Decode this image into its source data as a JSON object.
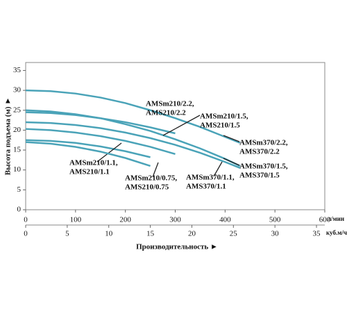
{
  "chart_data": {
    "type": "line",
    "y_label": "Высота подъема (м) ►",
    "x_label": "Производительность ►",
    "x_unit": "л/мин",
    "x2_unit": "куб.м/ч",
    "x": [
      0,
      50,
      100,
      150,
      200,
      250,
      300,
      350,
      400,
      430
    ],
    "xlim": [
      0,
      600
    ],
    "xticks": [
      0,
      100,
      200,
      300,
      400,
      500,
      600
    ],
    "x2lim": [
      0,
      36
    ],
    "x2ticks": [
      0,
      5,
      10,
      15,
      20,
      25,
      30,
      35
    ],
    "ylim": [
      0,
      37
    ],
    "yticks": [
      0,
      5,
      10,
      15,
      20,
      25,
      30,
      35
    ],
    "series": [
      {
        "label": [
          "AMSm370/2.2,",
          "AMS370/2.2"
        ],
        "color": "#4aa3b8",
        "values": [
          30,
          29.8,
          29.2,
          28.2,
          26.8,
          25,
          23,
          20.8,
          18.3,
          16.8
        ]
      },
      {
        "label": [
          "AMSm370/1.5,",
          "AMS370/1.5"
        ],
        "color": "#4aa3b8",
        "values": [
          25,
          24.7,
          24,
          23,
          21.5,
          19.8,
          17.7,
          15.4,
          12.8,
          11
        ]
      },
      {
        "label": [
          "AMSm370/1.1,",
          "AMS370/1.1"
        ],
        "color": "#4aa3b8",
        "values": [
          22,
          21.8,
          21.3,
          20.5,
          19.4,
          18,
          16.3,
          14.3,
          12,
          10.5
        ]
      },
      {
        "label": [
          "AMSm210/2.2,",
          "AMS210/2.2"
        ],
        "color": "#4aa3b8",
        "values": [
          24.5,
          24.3,
          23.8,
          23,
          22,
          20.7,
          19.2,
          null,
          null,
          null
        ]
      },
      {
        "label": [
          "AMSm210/1.5,",
          "AMS210/1.5"
        ],
        "color": "#4aa3b8",
        "values": [
          20.3,
          20,
          19.4,
          18.5,
          17.3,
          15.8,
          14,
          null,
          null,
          null
        ]
      },
      {
        "label": [
          "AMSm210/1.1,",
          "AMS210/1.1"
        ],
        "color": "#4aa3b8",
        "values": [
          17.5,
          17.3,
          16.8,
          15.9,
          14.7,
          13.2,
          null,
          null,
          null,
          null
        ]
      },
      {
        "label": [
          "AMSm210/0.75,",
          "AMS210/0.75"
        ],
        "color": "#4aa3b8",
        "values": [
          17,
          16.6,
          15.8,
          14.6,
          13,
          11,
          null,
          null,
          null,
          null
        ]
      }
    ]
  }
}
